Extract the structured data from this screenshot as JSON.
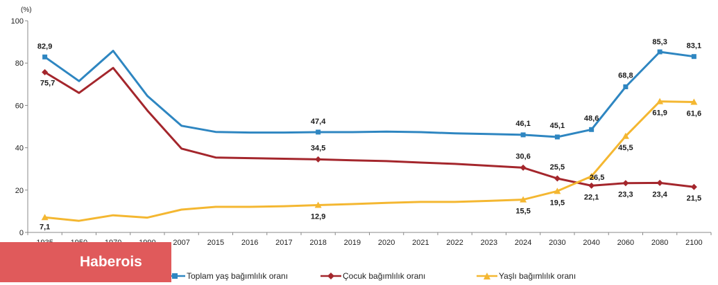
{
  "chart_data": {
    "type": "line",
    "unit_label": "(%)",
    "categories": [
      "1935",
      "1950",
      "1970",
      "1990",
      "2007",
      "2015",
      "2016",
      "2017",
      "2018",
      "2019",
      "2020",
      "2021",
      "2022",
      "2023",
      "2024",
      "2030",
      "2040",
      "2060",
      "2080",
      "2100"
    ],
    "ylim": [
      0,
      100
    ],
    "yticks": [
      0,
      20,
      40,
      60,
      80,
      100
    ],
    "grid": false,
    "legend_position": "bottom",
    "series": [
      {
        "name": "Toplam yaş bağımlılık oranı",
        "color": "#2e86c1",
        "marker": "square",
        "values": [
          82.9,
          71.5,
          85.8,
          64.5,
          50.4,
          47.5,
          47.2,
          47.2,
          47.4,
          47.4,
          47.6,
          47.4,
          46.8,
          46.5,
          46.1,
          45.1,
          48.6,
          68.8,
          85.3,
          83.1
        ],
        "marker_indices": [
          0,
          8,
          14,
          15,
          16,
          17,
          18,
          19
        ],
        "data_labels": {
          "0": "82,9",
          "8": "47,4",
          "14": "46,1",
          "15": "45,1",
          "16": "48,6",
          "17": "68,8",
          "18": "85,3",
          "19": "83,1"
        }
      },
      {
        "name": "Çocuk bağımlılık oranı",
        "color": "#a4262c",
        "marker": "diamond",
        "values": [
          75.7,
          65.9,
          77.7,
          57.6,
          39.6,
          35.4,
          35.1,
          34.8,
          34.5,
          34.1,
          33.7,
          33.0,
          32.4,
          31.5,
          30.6,
          25.5,
          22.1,
          23.3,
          23.4,
          21.5
        ],
        "marker_indices": [
          0,
          8,
          14,
          15,
          16,
          17,
          18,
          19
        ],
        "data_labels": {
          "0": "75,7",
          "8": "34,5",
          "14": "30,6",
          "15": "25,5",
          "16": "22,1",
          "17": "23,3",
          "18": "23,4",
          "19": "21,5"
        }
      },
      {
        "name": "Yaşlı bağımlılık oranı",
        "color": "#f4b731",
        "marker": "triangle",
        "values": [
          7.1,
          5.5,
          8.1,
          7.0,
          10.8,
          12.1,
          12.1,
          12.4,
          12.9,
          13.4,
          14.0,
          14.4,
          14.4,
          14.9,
          15.5,
          19.5,
          26.5,
          45.5,
          61.9,
          61.6
        ],
        "marker_indices": [
          0,
          8,
          14,
          15,
          16,
          17,
          18,
          19
        ],
        "data_labels": {
          "0": "7,1",
          "8": "12,9",
          "14": "15,5",
          "15": "19,5",
          "16": "26,5",
          "17": "45,5",
          "18": "61,9",
          "19": "61,6"
        }
      }
    ]
  },
  "watermark": "Haberois"
}
